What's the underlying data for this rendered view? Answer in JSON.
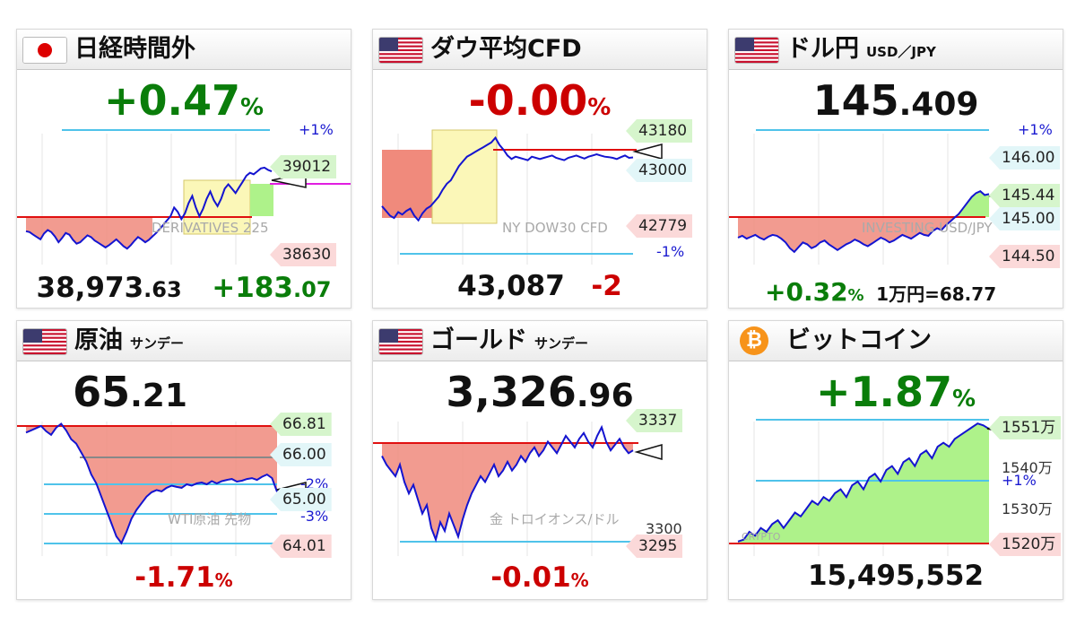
{
  "cards": {
    "nikkei": {
      "title": "日経時間外",
      "flag": "japan-flag",
      "change_pct": "+0.47",
      "pct_sign": "%",
      "label_plus1": "+1%",
      "tag_top": "39012",
      "tag_bottom": "38630",
      "watermark": "DERIVATIVES 225",
      "price_int": "38,973",
      "price_dec": ".63",
      "change_int": "+183",
      "change_dec": ".07",
      "series": [
        38838,
        38835,
        38826,
        38818,
        38810,
        38830,
        38842,
        38835,
        38820,
        38800,
        38815,
        38832,
        38826,
        38808,
        38795,
        38800,
        38812,
        38824,
        38818,
        38806,
        38798,
        38790,
        38782,
        38790,
        38800,
        38810,
        38798,
        38786,
        38778,
        38790,
        38805,
        38818,
        38810,
        38800,
        38808,
        38820,
        38832,
        38845,
        38860,
        38875,
        38890,
        38920,
        38905,
        38880,
        38900,
        38935,
        38960,
        38920,
        38890,
        38915,
        38950,
        38975,
        38945,
        38925,
        38950,
        38985,
        39000,
        38985,
        38970,
        38990,
        39010,
        39030,
        39040,
        39035,
        39045,
        39055,
        39058,
        39050,
        39045
      ]
    },
    "dow": {
      "title": "ダウ平均CFD",
      "flag": "us-flag",
      "change_pct": "-0.00",
      "pct_sign": "%",
      "tag_top": "43180",
      "tag_mid": "43000",
      "tag_bottom": "42779",
      "label_minus1": "-1%",
      "watermark": "NY DOW30 CFD",
      "price": "43,087",
      "change": "-2",
      "series": [
        42880,
        42860,
        42840,
        42830,
        42855,
        42845,
        42860,
        42870,
        42840,
        42820,
        42850,
        42870,
        42880,
        42900,
        42920,
        42950,
        42975,
        42990,
        43020,
        43050,
        43070,
        43090,
        43100,
        43110,
        43120,
        43130,
        43140,
        43150,
        43170,
        43140,
        43120,
        43095,
        43080,
        43090,
        43085,
        43080,
        43075,
        43090,
        43085,
        43080,
        43085,
        43090,
        43095,
        43085,
        43080,
        43075,
        43085,
        43090,
        43095,
        43088,
        43082,
        43090,
        43095,
        43100,
        43095,
        43090,
        43088,
        43085,
        43080,
        43088,
        43095,
        43085,
        43087
      ]
    },
    "usdjpy": {
      "title": "ドル円",
      "subtitle": "USD／JPY",
      "flag": "us-flag",
      "price_int": "145",
      "price_dec": ".409",
      "label_plus1": "+1%",
      "tag_l1": "146.00",
      "tag_l2": "145.44",
      "tag_l3": "145.00",
      "tag_l4": "144.50",
      "watermark": "INVESTING USD/JPY",
      "change_pct": "+0.32",
      "pct_sign": "%",
      "man_yen": "1万円=68.77",
      "series": [
        144.95,
        144.97,
        144.94,
        144.96,
        144.98,
        144.95,
        144.93,
        144.96,
        144.98,
        144.97,
        144.94,
        144.9,
        144.84,
        144.8,
        144.85,
        144.9,
        144.88,
        144.84,
        144.86,
        144.9,
        144.92,
        144.88,
        144.85,
        144.82,
        144.85,
        144.88,
        144.9,
        144.93,
        144.91,
        144.88,
        144.86,
        144.89,
        144.92,
        144.95,
        144.93,
        144.9,
        144.92,
        144.95,
        144.98,
        144.96,
        144.94,
        144.97,
        145.0,
        144.98,
        144.97,
        145.02,
        145.05,
        145.03,
        145.08,
        145.12,
        145.16,
        145.2,
        145.26,
        145.32,
        145.38,
        145.42,
        145.44,
        145.4,
        145.41
      ]
    },
    "oil": {
      "title": "原油",
      "subtitle": "サンデー",
      "flag": "us-flag",
      "price_int": "65",
      "price_dec": ".21",
      "tag_top": "66.81",
      "tag_l2": "66.00",
      "label_minus2": "-2%",
      "tag_l3": "65.00",
      "label_minus3": "-3%",
      "tag_bottom": "64.01",
      "watermark": "WTI原油 先物",
      "change_pct": "-1.71",
      "pct_sign": "%",
      "series": [
        66.55,
        66.6,
        66.65,
        66.7,
        66.58,
        66.5,
        66.66,
        66.75,
        66.6,
        66.4,
        66.3,
        66.1,
        65.9,
        65.6,
        65.4,
        65.1,
        64.8,
        64.5,
        64.2,
        64.05,
        64.3,
        64.6,
        64.8,
        64.95,
        65.1,
        65.2,
        65.25,
        65.22,
        65.3,
        65.35,
        65.32,
        65.3,
        65.38,
        65.35,
        65.4,
        65.42,
        65.38,
        65.45,
        65.4,
        65.45,
        65.48,
        65.5,
        65.44,
        65.46,
        65.5,
        65.52,
        65.48,
        65.55,
        65.6,
        65.52,
        65.21
      ]
    },
    "gold": {
      "title": "ゴールド",
      "subtitle": "サンデー",
      "flag": "us-flag",
      "price_int": "3,326",
      "price_dec": ".96",
      "tag_top": "3337",
      "tag_l2": "3300",
      "tag_bottom": "3295",
      "watermark": "金 トロイオンス/ドル",
      "change_pct": "-0.01",
      "pct_sign": "%",
      "series": [
        3325,
        3322,
        3320,
        3318,
        3322,
        3316,
        3312,
        3315,
        3310,
        3305,
        3308,
        3300,
        3296,
        3302,
        3299,
        3305,
        3301,
        3297,
        3303,
        3308,
        3312,
        3315,
        3318,
        3316,
        3319,
        3322,
        3318,
        3320,
        3323,
        3320,
        3322,
        3325,
        3323,
        3326,
        3328,
        3325,
        3327,
        3330,
        3328,
        3326,
        3329,
        3332,
        3330,
        3328,
        3331,
        3333,
        3330,
        3328,
        3332,
        3335,
        3330,
        3327,
        3329,
        3331,
        3328,
        3326,
        3327
      ]
    },
    "bitcoin": {
      "title": "ビットコイン",
      "coin_symbol": "₿",
      "change_pct": "+1.87",
      "pct_sign": "%",
      "tag_top": "1551万",
      "lvl_1540": "1540万",
      "label_plus1": "+1%",
      "lvl_1530": "1530万",
      "tag_bottom": "1520万",
      "watermark": "CRYPTO",
      "price": "15,495,552",
      "series": [
        1520.5,
        1521,
        1523,
        1522,
        1524,
        1523,
        1525,
        1526,
        1524,
        1526,
        1528,
        1527,
        1529,
        1531,
        1530,
        1532,
        1531,
        1533,
        1534,
        1532,
        1535,
        1536,
        1534,
        1537,
        1538,
        1536,
        1539,
        1540,
        1538,
        1541,
        1542,
        1540,
        1543,
        1544,
        1542,
        1545,
        1546,
        1545,
        1547,
        1548,
        1549,
        1550,
        1551,
        1550.5,
        1549.6
      ]
    }
  },
  "colors": {
    "up": "#0a7d0a",
    "down": "#cc0000",
    "line": "#1414d0",
    "fill_down": "#f08a7c",
    "fill_up": "#aef28a",
    "ref": "#e01010",
    "grid": "#4fc3ea",
    "magenta": "#e11ee1"
  }
}
